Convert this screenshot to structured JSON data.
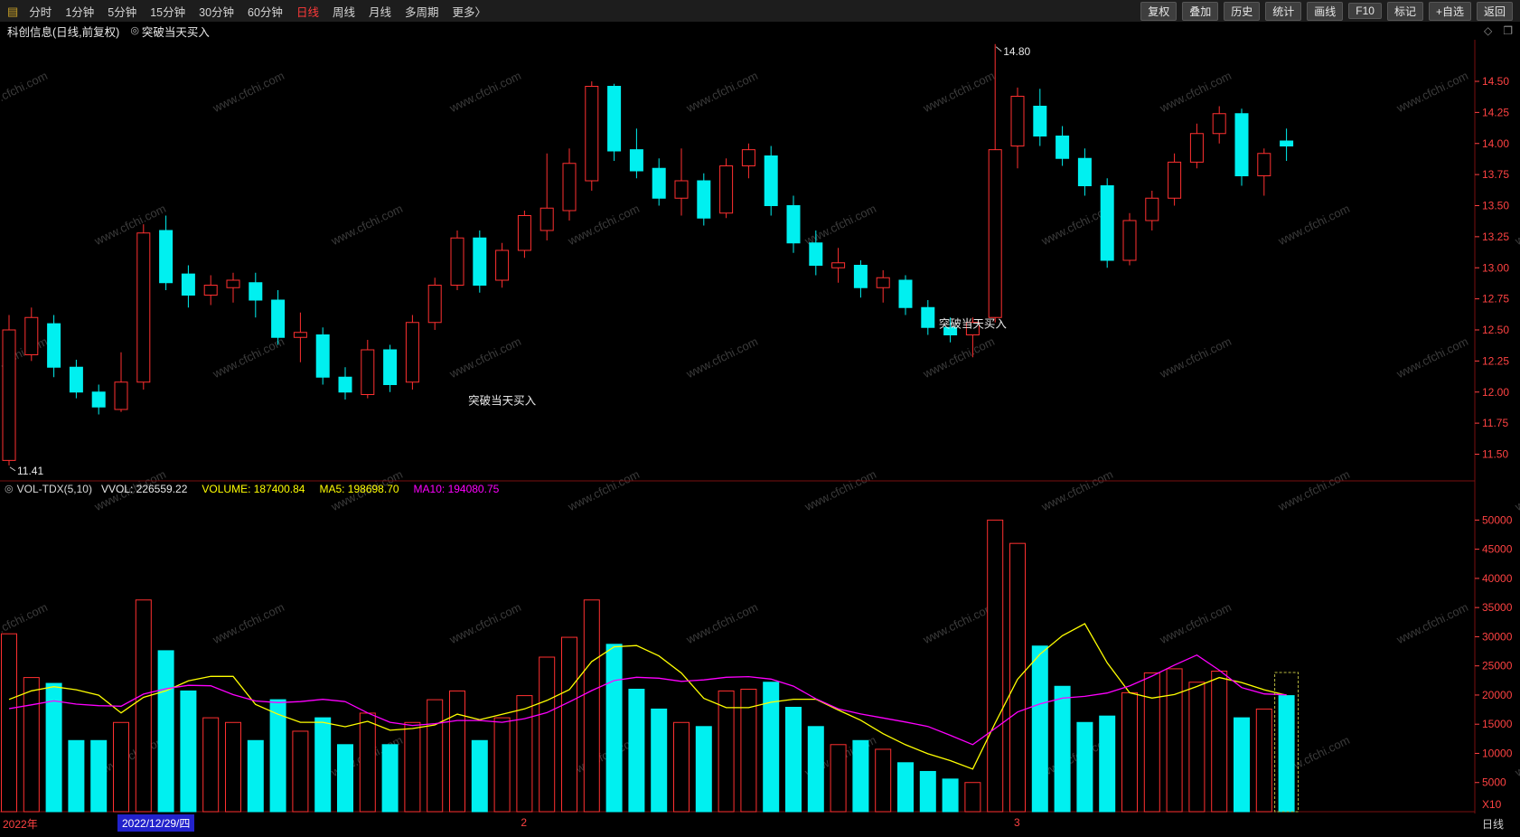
{
  "icons": {
    "menu": "▤",
    "indicator_circle": "◎",
    "diamond": "◇",
    "window": "❐"
  },
  "toolbar": {
    "periods": [
      {
        "label": "分时",
        "active": false
      },
      {
        "label": "1分钟",
        "active": false
      },
      {
        "label": "5分钟",
        "active": false
      },
      {
        "label": "15分钟",
        "active": false
      },
      {
        "label": "30分钟",
        "active": false
      },
      {
        "label": "60分钟",
        "active": false
      },
      {
        "label": "日线",
        "active": true
      },
      {
        "label": "周线",
        "active": false
      },
      {
        "label": "月线",
        "active": false
      },
      {
        "label": "多周期",
        "active": false
      },
      {
        "label": "更多〉",
        "active": false
      }
    ],
    "tools": [
      "复权",
      "叠加",
      "历史",
      "统计",
      "画线",
      "F10",
      "标记",
      "+自选",
      "返回"
    ]
  },
  "title": {
    "symbol_title": "科创信息(日线,前复权)",
    "signal_indicator": "突破当天买入"
  },
  "indicator_header": {
    "name": "VOL-TDX(5,10)",
    "vvol": "VVOL: 226559.22",
    "volume": "VOLUME: 187400.84",
    "ma5": "MA5: 198698.70",
    "ma10": "MA10: 194080.75"
  },
  "x_axis": {
    "year_label": "2022年",
    "date_label": "2022/12/29/四",
    "month_markers": [
      {
        "label": "2",
        "index": 23
      },
      {
        "label": "3",
        "index": 45
      }
    ],
    "period_label": "日线",
    "multiplier_label": "X10"
  },
  "watermark": "www.cfchi.com",
  "colors": {
    "up": "#ff3030",
    "down": "#00f0f0",
    "ma5": "#ffff00",
    "ma10": "#ff00ff",
    "axis_text": "#ff4242",
    "frame": "#7a1010",
    "annotation": "#e8e8e8",
    "selection": "#baba40"
  },
  "chart_data": {
    "type": "candlestick_volume",
    "title": "科创信息(日线,前复权)",
    "candles_format": [
      "open",
      "high",
      "low",
      "close",
      "volume"
    ],
    "price_axis": {
      "min": 11.3,
      "max": 14.82,
      "ticks": [
        14.5,
        14.25,
        14.0,
        13.75,
        13.5,
        13.25,
        13.0,
        12.75,
        12.5,
        12.25,
        12.0,
        11.75,
        11.5
      ]
    },
    "volume_axis": {
      "min": 0,
      "max": 53000,
      "ticks": [
        50000,
        45000,
        40000,
        35000,
        30000,
        25000,
        20000,
        15000,
        10000,
        5000
      ],
      "multiplier": "X10"
    },
    "ma_periods": [
      5,
      10
    ],
    "volume_ma_seed": [
      16500,
      15200,
      17800,
      14800,
      16200,
      15600,
      18400,
      14900,
      16800
    ],
    "candles": [
      [
        11.45,
        12.62,
        11.41,
        12.5,
        30500
      ],
      [
        12.3,
        12.68,
        12.25,
        12.6,
        23000
      ],
      [
        12.55,
        12.62,
        12.12,
        12.2,
        22000
      ],
      [
        12.2,
        12.26,
        11.95,
        12.0,
        12200
      ],
      [
        12.0,
        12.06,
        11.82,
        11.88,
        12200
      ],
      [
        11.86,
        12.32,
        11.84,
        12.08,
        15300
      ],
      [
        12.08,
        13.35,
        12.02,
        13.28,
        36300
      ],
      [
        13.3,
        13.42,
        12.82,
        12.88,
        27600
      ],
      [
        12.95,
        13.02,
        12.68,
        12.78,
        20700
      ],
      [
        12.78,
        12.94,
        12.7,
        12.86,
        16100
      ],
      [
        12.84,
        12.96,
        12.72,
        12.9,
        15300
      ],
      [
        12.88,
        12.96,
        12.6,
        12.74,
        12200
      ],
      [
        12.74,
        12.82,
        12.38,
        12.44,
        19200
      ],
      [
        12.44,
        12.64,
        12.24,
        12.48,
        13800
      ],
      [
        12.46,
        12.52,
        12.06,
        12.12,
        16100
      ],
      [
        12.12,
        12.2,
        11.94,
        12.0,
        11500
      ],
      [
        11.98,
        12.42,
        11.95,
        12.34,
        16900
      ],
      [
        12.34,
        12.38,
        12.0,
        12.06,
        11500
      ],
      [
        12.08,
        12.62,
        12.02,
        12.56,
        15300
      ],
      [
        12.56,
        12.92,
        12.5,
        12.86,
        19200
      ],
      [
        12.86,
        13.3,
        12.82,
        13.24,
        20700
      ],
      [
        13.24,
        13.3,
        12.8,
        12.86,
        12200
      ],
      [
        12.9,
        13.2,
        12.84,
        13.14,
        16100
      ],
      [
        13.14,
        13.46,
        13.08,
        13.42,
        19900
      ],
      [
        13.3,
        13.92,
        13.22,
        13.48,
        26500
      ],
      [
        13.46,
        13.96,
        13.38,
        13.84,
        29900
      ],
      [
        13.7,
        14.5,
        13.62,
        14.46,
        36300
      ],
      [
        14.46,
        14.48,
        13.86,
        13.94,
        28700
      ],
      [
        13.95,
        14.12,
        13.72,
        13.78,
        21000
      ],
      [
        13.8,
        13.88,
        13.5,
        13.56,
        17600
      ],
      [
        13.56,
        13.96,
        13.42,
        13.7,
        15300
      ],
      [
        13.7,
        13.76,
        13.34,
        13.4,
        14600
      ],
      [
        13.44,
        13.88,
        13.4,
        13.82,
        20700
      ],
      [
        13.82,
        14.0,
        13.72,
        13.95,
        21000
      ],
      [
        13.9,
        13.98,
        13.42,
        13.5,
        22200
      ],
      [
        13.5,
        13.58,
        13.12,
        13.2,
        17900
      ],
      [
        13.2,
        13.3,
        12.94,
        13.02,
        14600
      ],
      [
        13.0,
        13.16,
        12.88,
        13.04,
        11500
      ],
      [
        13.02,
        13.06,
        12.76,
        12.84,
        12200
      ],
      [
        12.84,
        12.98,
        12.72,
        12.92,
        10700
      ],
      [
        12.9,
        12.94,
        12.62,
        12.68,
        8400
      ],
      [
        12.68,
        12.74,
        12.46,
        12.52,
        6900
      ],
      [
        12.52,
        12.6,
        12.4,
        12.46,
        5600
      ],
      [
        12.46,
        12.6,
        12.28,
        12.56,
        5000
      ],
      [
        12.6,
        14.8,
        12.56,
        13.95,
        50000
      ],
      [
        13.98,
        14.45,
        13.8,
        14.38,
        46000
      ],
      [
        14.3,
        14.44,
        13.98,
        14.06,
        28400
      ],
      [
        14.06,
        14.14,
        13.82,
        13.88,
        21500
      ],
      [
        13.88,
        13.96,
        13.58,
        13.66,
        15300
      ],
      [
        13.66,
        13.72,
        13.0,
        13.06,
        16400
      ],
      [
        13.06,
        13.44,
        13.02,
        13.38,
        20400
      ],
      [
        13.38,
        13.62,
        13.3,
        13.56,
        23800
      ],
      [
        13.56,
        13.92,
        13.5,
        13.85,
        24500
      ],
      [
        13.85,
        14.16,
        13.8,
        14.08,
        22200
      ],
      [
        14.08,
        14.3,
        14.0,
        14.24,
        24100
      ],
      [
        14.24,
        14.28,
        13.66,
        13.74,
        16100
      ],
      [
        13.74,
        13.96,
        13.58,
        13.92,
        17600
      ],
      [
        14.02,
        14.12,
        13.86,
        13.98,
        19900
      ]
    ],
    "annotations": {
      "high_marker": {
        "index": 44,
        "price": 14.8,
        "text": "14.80"
      },
      "low_marker": {
        "index": 0,
        "price": 11.41,
        "text": "11.41"
      },
      "signals": [
        {
          "index": 22,
          "price": 11.9,
          "text": "突破当天买入"
        },
        {
          "index": 43,
          "price": 12.52,
          "text": "突破当天买入"
        }
      ]
    },
    "selection_box_index": 57
  }
}
